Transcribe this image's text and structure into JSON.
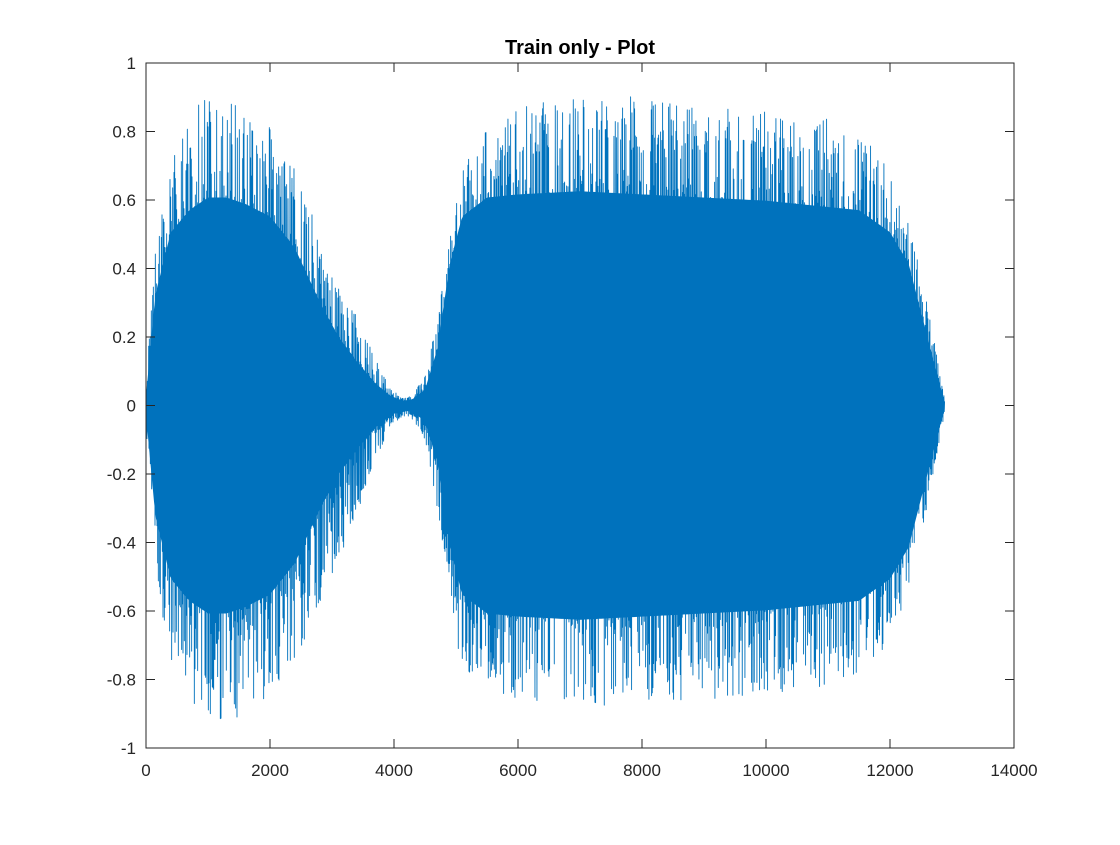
{
  "chart_data": {
    "type": "line",
    "title": "Train only - Plot",
    "xlabel": "",
    "ylabel": "",
    "xlim": [
      0,
      14000
    ],
    "ylim": [
      -1,
      1
    ],
    "xticks": [
      0,
      2000,
      4000,
      6000,
      8000,
      10000,
      12000,
      14000
    ],
    "xtick_labels": [
      "0",
      "2000",
      "4000",
      "6000",
      "8000",
      "10000",
      "12000",
      "14000"
    ],
    "yticks": [
      -1,
      -0.8,
      -0.6,
      -0.4,
      -0.2,
      0,
      0.2,
      0.4,
      0.6,
      0.8,
      1
    ],
    "ytick_labels": [
      "-1",
      "-0.8",
      "-0.6",
      "-0.4",
      "-0.2",
      "0",
      "0.2",
      "0.4",
      "0.6",
      "0.8",
      "1"
    ],
    "grid": false,
    "legend": false,
    "box": true,
    "series": [
      {
        "color": "#0072BD",
        "num_samples": 12880,
        "envelope": {
          "x": [
            0,
            150,
            400,
            700,
            1000,
            1300,
            1600,
            2000,
            2400,
            2800,
            3100,
            3400,
            3700,
            3950,
            4150,
            4300,
            4500,
            4700,
            4900,
            5100,
            5500,
            6000,
            7000,
            8000,
            9000,
            10000,
            11000,
            11500,
            12000,
            12300,
            12600,
            12800,
            12880
          ],
          "upper": [
            0.05,
            0.5,
            0.72,
            0.83,
            0.93,
            0.92,
            0.88,
            0.82,
            0.7,
            0.5,
            0.36,
            0.26,
            0.14,
            0.05,
            0.02,
            0.03,
            0.09,
            0.28,
            0.5,
            0.7,
            0.82,
            0.87,
            0.91,
            0.9,
            0.87,
            0.86,
            0.84,
            0.82,
            0.68,
            0.55,
            0.3,
            0.1,
            0.02
          ],
          "lower": [
            -0.05,
            -0.5,
            -0.75,
            -0.85,
            -0.93,
            -0.94,
            -0.92,
            -0.87,
            -0.75,
            -0.58,
            -0.46,
            -0.32,
            -0.18,
            -0.06,
            -0.03,
            -0.04,
            -0.1,
            -0.3,
            -0.6,
            -0.78,
            -0.83,
            -0.86,
            -0.88,
            -0.87,
            -0.86,
            -0.85,
            -0.82,
            -0.79,
            -0.7,
            -0.56,
            -0.3,
            -0.1,
            -0.02
          ],
          "core": [
            0.03,
            0.35,
            0.55,
            0.62,
            0.66,
            0.66,
            0.64,
            0.6,
            0.5,
            0.33,
            0.22,
            0.14,
            0.07,
            0.03,
            0.015,
            0.02,
            0.05,
            0.18,
            0.45,
            0.6,
            0.66,
            0.67,
            0.68,
            0.67,
            0.66,
            0.65,
            0.63,
            0.62,
            0.55,
            0.45,
            0.22,
            0.07,
            0.01
          ]
        }
      }
    ]
  }
}
